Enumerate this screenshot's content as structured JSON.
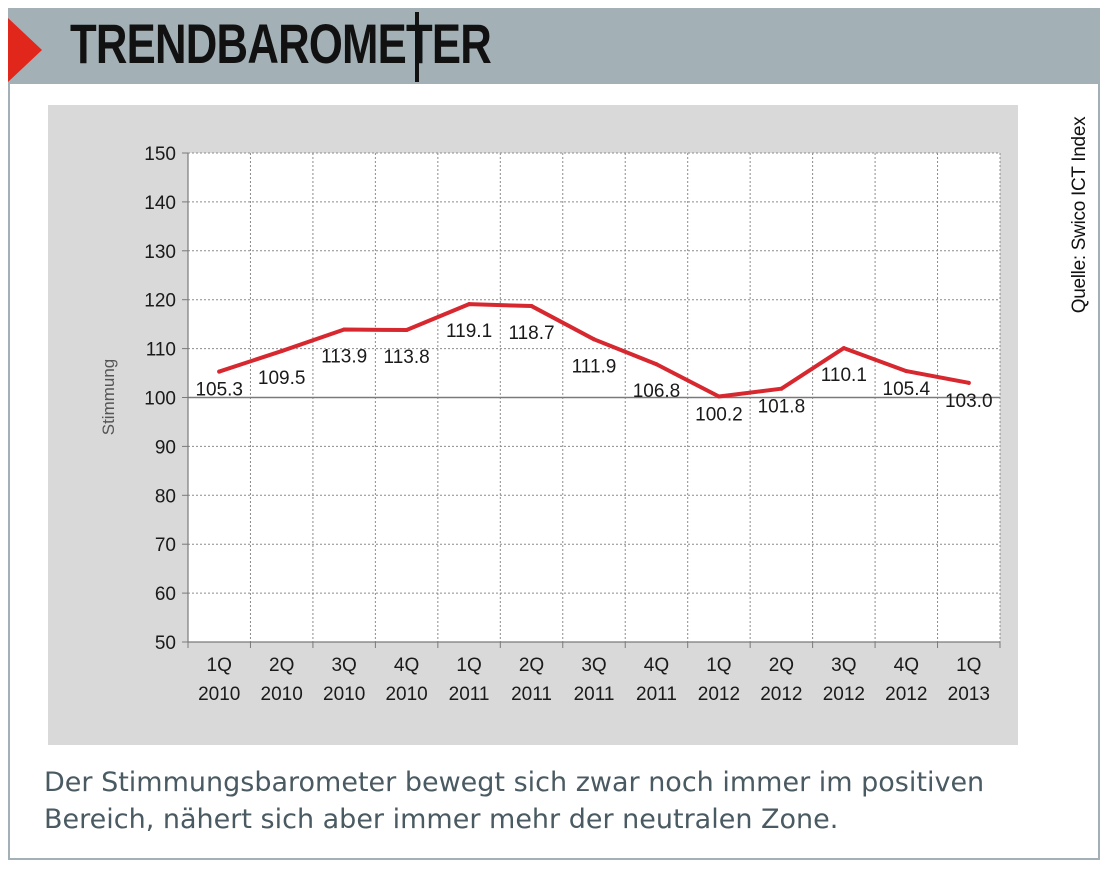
{
  "header": {
    "title": "TRENDBAROMETER",
    "source_label": "Quelle: Swico ICT Index"
  },
  "caption": "Der Stimmungsbarometer bewegt sich zwar noch immer im positiven Bereich, nähert sich aber immer mehr der neutralen Zone.",
  "colors": {
    "header_bg": "#a3b1b7",
    "accent_red": "#e1261c",
    "line": "#d7282f",
    "plot_bg": "#d9d9d9",
    "caption_text": "#4a5a62"
  },
  "chart_data": {
    "type": "line",
    "ylabel": "Stimmung",
    "xlabel": "",
    "ylim": [
      50,
      150
    ],
    "yticks": [
      50,
      60,
      70,
      80,
      90,
      100,
      110,
      120,
      130,
      140,
      150
    ],
    "grid": true,
    "reference_line": 100,
    "categories": [
      [
        "1Q",
        "2010"
      ],
      [
        "2Q",
        "2010"
      ],
      [
        "3Q",
        "2010"
      ],
      [
        "4Q",
        "2010"
      ],
      [
        "1Q",
        "2011"
      ],
      [
        "2Q",
        "2011"
      ],
      [
        "3Q",
        "2011"
      ],
      [
        "4Q",
        "2011"
      ],
      [
        "1Q",
        "2012"
      ],
      [
        "2Q",
        "2012"
      ],
      [
        "3Q",
        "2012"
      ],
      [
        "4Q",
        "2012"
      ],
      [
        "1Q",
        "2013"
      ]
    ],
    "values": [
      105.3,
      109.5,
      113.9,
      113.8,
      119.1,
      118.7,
      111.9,
      106.8,
      100.2,
      101.8,
      110.1,
      105.4,
      103.0
    ],
    "labels": [
      "105.3",
      "109.5",
      "113.9",
      "113.8",
      "119.1",
      "118.7",
      "111.9",
      "106.8",
      "100.2",
      "101.8",
      "110.1",
      "105.4",
      "103.0"
    ]
  }
}
